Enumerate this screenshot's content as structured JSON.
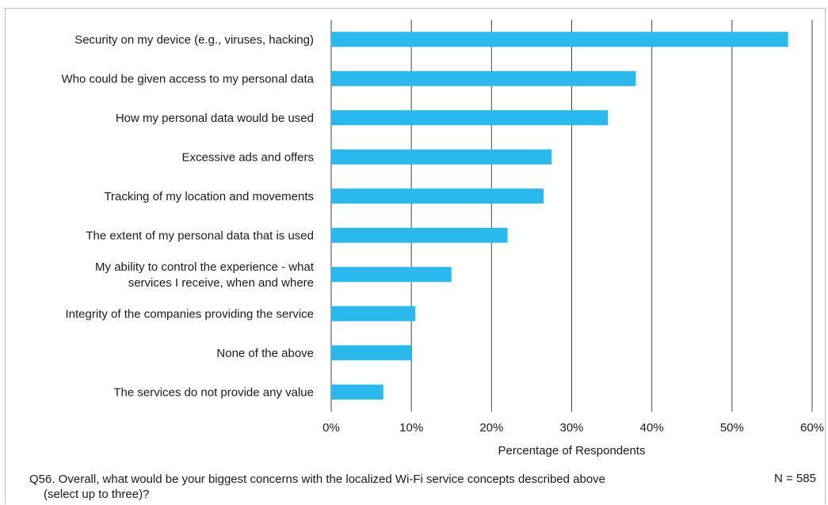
{
  "chart_data": {
    "type": "bar",
    "orientation": "horizontal",
    "categories": [
      [
        "Security on my device (e.g., viruses, hacking)"
      ],
      [
        "Who could be given access to my personal data"
      ],
      [
        "How my personal data would be used"
      ],
      [
        "Excessive ads and offers"
      ],
      [
        "Tracking of my location and movements"
      ],
      [
        "The extent of my personal data that is used"
      ],
      [
        "My ability to control the experience - what",
        "services I receive, when and where"
      ],
      [
        "Integrity of the companies providing the service"
      ],
      [
        "None of the above"
      ],
      [
        "The services do not provide any value"
      ]
    ],
    "values": [
      57,
      38,
      34.5,
      27.5,
      26.5,
      22,
      15,
      10.5,
      10,
      6.5
    ],
    "xlabel": "Percentage of Respondents",
    "xlim": [
      0,
      60
    ],
    "xticks": [
      "0%",
      "10%",
      "20%",
      "30%",
      "40%",
      "50%",
      "60%"
    ],
    "grid": "vertical",
    "bar_color": "#29b9ec"
  },
  "footnote": {
    "question": "Q56. Overall, what would be your biggest concerns with the localized Wi-Fi service concepts described above",
    "question_cont": "(select up to three)?",
    "n": "N = 585"
  }
}
